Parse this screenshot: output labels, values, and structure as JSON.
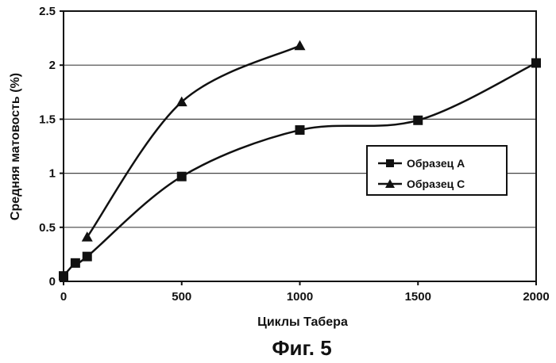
{
  "chart_data": {
    "type": "line",
    "title": "",
    "xlabel": "Циклы Табера",
    "ylabel": "Средняя матовость (%)",
    "xlim": [
      0,
      2000
    ],
    "ylim": [
      0,
      2.5
    ],
    "x_ticks": [
      0,
      500,
      1000,
      1500,
      2000
    ],
    "y_ticks": [
      0,
      0.5,
      1,
      1.5,
      2,
      2.5
    ],
    "x_tick_labels": [
      "0",
      "500",
      "1000",
      "1500",
      "2000"
    ],
    "y_tick_labels": [
      "0",
      "0.5",
      "1",
      "1.5",
      "2",
      "2.5"
    ],
    "grid": "horizontal",
    "legend_position": "right",
    "series": [
      {
        "name": "Образец А",
        "marker": "square",
        "color": "#111111",
        "x": [
          0,
          50,
          100,
          500,
          1000,
          1500,
          2000
        ],
        "y": [
          0.05,
          0.17,
          0.23,
          0.97,
          1.4,
          1.49,
          2.02
        ]
      },
      {
        "name": "Образец С",
        "marker": "triangle",
        "color": "#111111",
        "x": [
          100,
          500,
          1000
        ],
        "y": [
          0.41,
          1.66,
          2.18
        ]
      }
    ]
  },
  "caption": "Фиг. 5"
}
